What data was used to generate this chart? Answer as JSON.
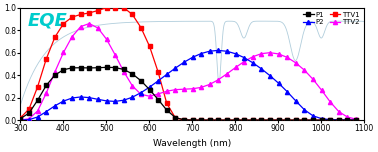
{
  "title": "EQE",
  "xlabel": "Wavelength (nm)",
  "xlim": [
    300,
    1100
  ],
  "ylim": [
    0.0,
    1.0
  ],
  "yticks": [
    0.0,
    0.2,
    0.4,
    0.6,
    0.8,
    1.0
  ],
  "xticks": [
    300,
    400,
    500,
    600,
    700,
    800,
    900,
    1000,
    1100
  ],
  "background_color": "#ffffff",
  "title_color": "#00cccc",
  "title_fontsize": 13,
  "marker_size": 2.5,
  "line_width": 0.9,
  "marker_step": 20
}
